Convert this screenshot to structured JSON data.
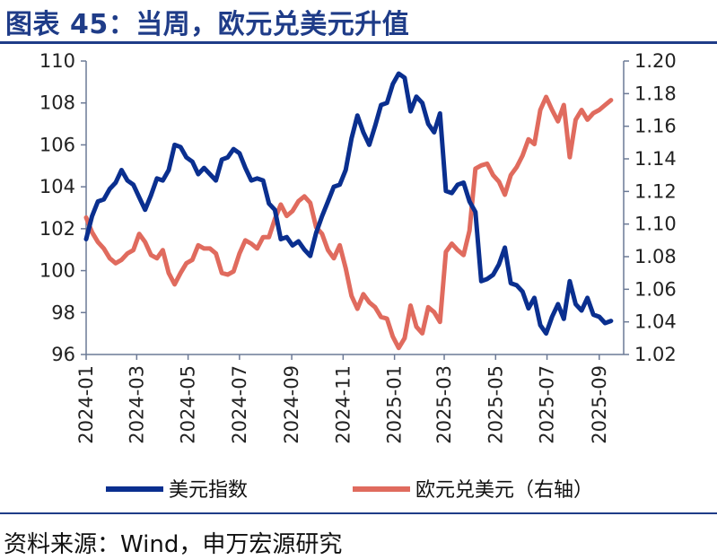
{
  "header": {
    "title": "图表 45：当周，欧元兑美元升值"
  },
  "footer": {
    "source": "资料来源：Wind，申万宏源研究"
  },
  "chart_data": {
    "type": "line",
    "x_ticks": [
      "2024-01",
      "2024-03",
      "2024-05",
      "2024-07",
      "2024-09",
      "2024-11",
      "2025-01",
      "2025-03",
      "2025-05",
      "2025-07",
      "2025-09"
    ],
    "y_left": {
      "ticks": [
        "110",
        "108",
        "106",
        "104",
        "102",
        "100",
        "98",
        "96"
      ],
      "ylim": [
        96,
        110
      ]
    },
    "y_right": {
      "ticks": [
        "1.20",
        "1.18",
        "1.16",
        "1.14",
        "1.12",
        "1.10",
        "1.08",
        "1.06",
        "1.04",
        "1.02"
      ],
      "ylim": [
        1.02,
        1.2
      ]
    },
    "legend": [
      "美元指数",
      "欧元兑美元（右轴）"
    ],
    "series": [
      {
        "name": "美元指数",
        "axis": "left",
        "color": "#0a2f8f",
        "points": [
          [
            "2024-01-01",
            101.5
          ],
          [
            "2024-01-08",
            102.6
          ],
          [
            "2024-01-15",
            103.3
          ],
          [
            "2024-01-22",
            103.4
          ],
          [
            "2024-01-29",
            103.9
          ],
          [
            "2024-02-05",
            104.2
          ],
          [
            "2024-02-12",
            104.8
          ],
          [
            "2024-02-19",
            104.3
          ],
          [
            "2024-02-26",
            104.1
          ],
          [
            "2024-03-04",
            103.5
          ],
          [
            "2024-03-11",
            102.9
          ],
          [
            "2024-03-18",
            103.6
          ],
          [
            "2024-03-25",
            104.4
          ],
          [
            "2024-04-01",
            104.3
          ],
          [
            "2024-04-08",
            104.8
          ],
          [
            "2024-04-15",
            106.0
          ],
          [
            "2024-04-22",
            105.9
          ],
          [
            "2024-04-29",
            105.4
          ],
          [
            "2024-05-06",
            105.2
          ],
          [
            "2024-05-13",
            104.6
          ],
          [
            "2024-05-20",
            104.9
          ],
          [
            "2024-05-27",
            104.6
          ],
          [
            "2024-06-03",
            104.3
          ],
          [
            "2024-06-10",
            105.3
          ],
          [
            "2024-06-17",
            105.4
          ],
          [
            "2024-06-24",
            105.8
          ],
          [
            "2024-07-01",
            105.6
          ],
          [
            "2024-07-08",
            104.9
          ],
          [
            "2024-07-15",
            104.3
          ],
          [
            "2024-07-22",
            104.4
          ],
          [
            "2024-07-29",
            104.3
          ],
          [
            "2024-08-05",
            103.2
          ],
          [
            "2024-08-12",
            102.9
          ],
          [
            "2024-08-19",
            101.5
          ],
          [
            "2024-08-26",
            101.6
          ],
          [
            "2024-09-02",
            101.2
          ],
          [
            "2024-09-09",
            101.4
          ],
          [
            "2024-09-16",
            101.0
          ],
          [
            "2024-09-23",
            100.7
          ],
          [
            "2024-09-30",
            101.8
          ],
          [
            "2024-10-07",
            102.6
          ],
          [
            "2024-10-14",
            103.3
          ],
          [
            "2024-10-21",
            104.0
          ],
          [
            "2024-10-28",
            104.1
          ],
          [
            "2024-11-04",
            104.8
          ],
          [
            "2024-11-11",
            106.3
          ],
          [
            "2024-11-18",
            107.4
          ],
          [
            "2024-11-25",
            106.6
          ],
          [
            "2024-12-02",
            106.0
          ],
          [
            "2024-12-09",
            106.9
          ],
          [
            "2024-12-16",
            107.9
          ],
          [
            "2024-12-23",
            108.0
          ],
          [
            "2024-12-30",
            108.9
          ],
          [
            "2025-01-06",
            109.4
          ],
          [
            "2025-01-13",
            109.2
          ],
          [
            "2025-01-20",
            107.6
          ],
          [
            "2025-01-27",
            108.3
          ],
          [
            "2025-02-03",
            108.0
          ],
          [
            "2025-02-10",
            107.0
          ],
          [
            "2025-02-17",
            106.6
          ],
          [
            "2025-02-24",
            107.5
          ],
          [
            "2025-03-03",
            103.8
          ],
          [
            "2025-03-10",
            103.7
          ],
          [
            "2025-03-17",
            104.1
          ],
          [
            "2025-03-24",
            104.2
          ],
          [
            "2025-03-31",
            103.3
          ],
          [
            "2025-04-07",
            102.8
          ],
          [
            "2025-04-14",
            99.5
          ],
          [
            "2025-04-21",
            99.6
          ],
          [
            "2025-04-28",
            99.8
          ],
          [
            "2025-05-05",
            100.3
          ],
          [
            "2025-05-12",
            101.1
          ],
          [
            "2025-05-19",
            99.4
          ],
          [
            "2025-05-26",
            99.3
          ],
          [
            "2025-06-02",
            99.0
          ],
          [
            "2025-06-09",
            98.2
          ],
          [
            "2025-06-16",
            98.7
          ],
          [
            "2025-06-23",
            97.4
          ],
          [
            "2025-06-30",
            97.0
          ],
          [
            "2025-07-07",
            97.8
          ],
          [
            "2025-07-14",
            98.4
          ],
          [
            "2025-07-21",
            97.7
          ],
          [
            "2025-07-28",
            99.5
          ],
          [
            "2025-08-04",
            98.4
          ],
          [
            "2025-08-11",
            98.1
          ],
          [
            "2025-08-18",
            98.7
          ],
          [
            "2025-08-25",
            97.9
          ],
          [
            "2025-09-01",
            97.8
          ],
          [
            "2025-09-08",
            97.5
          ],
          [
            "2025-09-15",
            97.6
          ]
        ]
      },
      {
        "name": "欧元兑美元（右轴）",
        "axis": "right",
        "color": "#e06b5e",
        "points": [
          [
            "2024-01-01",
            1.104
          ],
          [
            "2024-01-08",
            1.095
          ],
          [
            "2024-01-15",
            1.089
          ],
          [
            "2024-01-22",
            1.085
          ],
          [
            "2024-01-29",
            1.079
          ],
          [
            "2024-02-05",
            1.076
          ],
          [
            "2024-02-12",
            1.078
          ],
          [
            "2024-02-19",
            1.082
          ],
          [
            "2024-02-26",
            1.084
          ],
          [
            "2024-03-04",
            1.094
          ],
          [
            "2024-03-11",
            1.089
          ],
          [
            "2024-03-18",
            1.081
          ],
          [
            "2024-03-25",
            1.079
          ],
          [
            "2024-04-01",
            1.084
          ],
          [
            "2024-04-08",
            1.07
          ],
          [
            "2024-04-15",
            1.063
          ],
          [
            "2024-04-22",
            1.07
          ],
          [
            "2024-04-29",
            1.076
          ],
          [
            "2024-05-06",
            1.078
          ],
          [
            "2024-05-13",
            1.087
          ],
          [
            "2024-05-20",
            1.085
          ],
          [
            "2024-05-27",
            1.085
          ],
          [
            "2024-06-03",
            1.082
          ],
          [
            "2024-06-10",
            1.07
          ],
          [
            "2024-06-17",
            1.069
          ],
          [
            "2024-06-24",
            1.071
          ],
          [
            "2024-07-01",
            1.082
          ],
          [
            "2024-07-08",
            1.09
          ],
          [
            "2024-07-15",
            1.088
          ],
          [
            "2024-07-22",
            1.085
          ],
          [
            "2024-07-29",
            1.092
          ],
          [
            "2024-08-05",
            1.092
          ],
          [
            "2024-08-12",
            1.103
          ],
          [
            "2024-08-19",
            1.112
          ],
          [
            "2024-08-26",
            1.105
          ],
          [
            "2024-09-02",
            1.108
          ],
          [
            "2024-09-09",
            1.114
          ],
          [
            "2024-09-16",
            1.117
          ],
          [
            "2024-09-23",
            1.113
          ],
          [
            "2024-09-30",
            1.098
          ],
          [
            "2024-10-07",
            1.094
          ],
          [
            "2024-10-14",
            1.084
          ],
          [
            "2024-10-21",
            1.079
          ],
          [
            "2024-10-28",
            1.087
          ],
          [
            "2024-11-04",
            1.073
          ],
          [
            "2024-11-11",
            1.056
          ],
          [
            "2024-11-18",
            1.048
          ],
          [
            "2024-11-25",
            1.057
          ],
          [
            "2024-12-02",
            1.052
          ],
          [
            "2024-12-09",
            1.049
          ],
          [
            "2024-12-16",
            1.043
          ],
          [
            "2024-12-23",
            1.042
          ],
          [
            "2024-12-30",
            1.031
          ],
          [
            "2025-01-06",
            1.024
          ],
          [
            "2025-01-13",
            1.03
          ],
          [
            "2025-01-20",
            1.05
          ],
          [
            "2025-01-27",
            1.037
          ],
          [
            "2025-02-03",
            1.033
          ],
          [
            "2025-02-10",
            1.049
          ],
          [
            "2025-02-17",
            1.046
          ],
          [
            "2025-02-24",
            1.04
          ],
          [
            "2025-03-03",
            1.083
          ],
          [
            "2025-03-10",
            1.088
          ],
          [
            "2025-03-17",
            1.084
          ],
          [
            "2025-03-24",
            1.081
          ],
          [
            "2025-03-31",
            1.096
          ],
          [
            "2025-04-07",
            1.134
          ],
          [
            "2025-04-14",
            1.136
          ],
          [
            "2025-04-21",
            1.137
          ],
          [
            "2025-04-28",
            1.13
          ],
          [
            "2025-05-05",
            1.126
          ],
          [
            "2025-05-12",
            1.118
          ],
          [
            "2025-05-19",
            1.13
          ],
          [
            "2025-05-26",
            1.135
          ],
          [
            "2025-06-02",
            1.142
          ],
          [
            "2025-06-09",
            1.152
          ],
          [
            "2025-06-16",
            1.149
          ],
          [
            "2025-06-23",
            1.17
          ],
          [
            "2025-06-30",
            1.178
          ],
          [
            "2025-07-07",
            1.17
          ],
          [
            "2025-07-14",
            1.163
          ],
          [
            "2025-07-21",
            1.173
          ],
          [
            "2025-07-28",
            1.141
          ],
          [
            "2025-08-04",
            1.164
          ],
          [
            "2025-08-11",
            1.17
          ],
          [
            "2025-08-18",
            1.164
          ],
          [
            "2025-08-25",
            1.168
          ],
          [
            "2025-09-01",
            1.17
          ],
          [
            "2025-09-08",
            1.173
          ],
          [
            "2025-09-15",
            1.176
          ]
        ]
      }
    ]
  }
}
